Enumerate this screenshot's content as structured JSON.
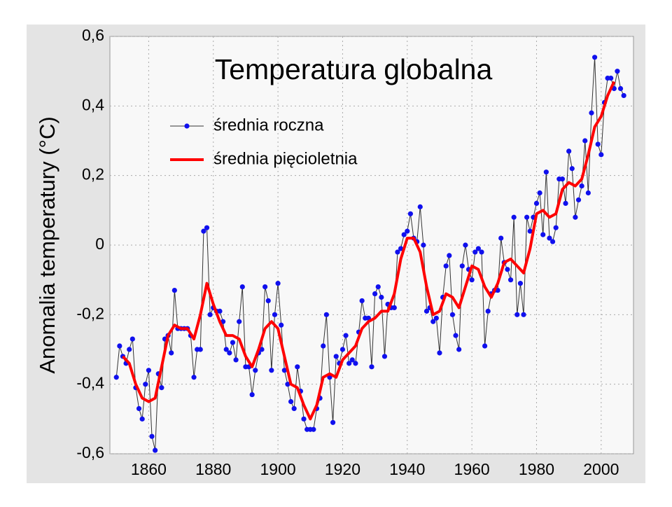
{
  "chart_data": {
    "type": "line",
    "title": "Temperatura globalna",
    "y_label": "Anomalia temperatury (°C)",
    "xlim": [
      1848,
      2010
    ],
    "xticks": [
      1860,
      1880,
      1900,
      1920,
      1940,
      1960,
      1980,
      2000
    ],
    "ylim": [
      -0.6,
      0.6
    ],
    "yticks": [
      {
        "value": -0.6,
        "label": "-0,6"
      },
      {
        "value": -0.4,
        "label": "-0,4"
      },
      {
        "value": -0.2,
        "label": "-0,2"
      },
      0,
      {
        "value": 0.2,
        "label": "0,2"
      },
      {
        "value": 0.4,
        "label": "0,4"
      },
      {
        "value": 0.6,
        "label": "0,6"
      }
    ],
    "grid": true,
    "legend": "upper left",
    "series": [
      {
        "name": "średnia roczna",
        "color": "#333333",
        "marker_color": "#1010ee",
        "markers": true,
        "width": 1,
        "x": [
          1850,
          1851,
          1852,
          1853,
          1854,
          1855,
          1856,
          1857,
          1858,
          1859,
          1860,
          1861,
          1862,
          1863,
          1864,
          1865,
          1866,
          1867,
          1868,
          1869,
          1870,
          1871,
          1872,
          1873,
          1874,
          1875,
          1876,
          1877,
          1878,
          1879,
          1880,
          1881,
          1882,
          1883,
          1884,
          1885,
          1886,
          1887,
          1888,
          1889,
          1890,
          1891,
          1892,
          1893,
          1894,
          1895,
          1896,
          1897,
          1898,
          1899,
          1900,
          1901,
          1902,
          1903,
          1904,
          1905,
          1906,
          1907,
          1908,
          1909,
          1910,
          1911,
          1912,
          1913,
          1914,
          1915,
          1916,
          1917,
          1918,
          1919,
          1920,
          1921,
          1922,
          1923,
          1924,
          1925,
          1926,
          1927,
          1928,
          1929,
          1930,
          1931,
          1932,
          1933,
          1934,
          1935,
          1936,
          1937,
          1938,
          1939,
          1940,
          1941,
          1942,
          1943,
          1944,
          1945,
          1946,
          1947,
          1948,
          1949,
          1950,
          1951,
          1952,
          1953,
          1954,
          1955,
          1956,
          1957,
          1958,
          1959,
          1960,
          1961,
          1962,
          1963,
          1964,
          1965,
          1966,
          1967,
          1968,
          1969,
          1970,
          1971,
          1972,
          1973,
          1974,
          1975,
          1976,
          1977,
          1978,
          1979,
          1980,
          1981,
          1982,
          1983,
          1984,
          1985,
          1986,
          1987,
          1988,
          1989,
          1990,
          1991,
          1992,
          1993,
          1994,
          1995,
          1996,
          1997,
          1998,
          1999,
          2000,
          2001,
          2002,
          2003,
          2004,
          2005,
          2006,
          2007
        ],
        "values": [
          -0.38,
          -0.29,
          -0.32,
          -0.34,
          -0.3,
          -0.27,
          -0.41,
          -0.47,
          -0.5,
          -0.4,
          -0.36,
          -0.55,
          -0.59,
          -0.37,
          -0.41,
          -0.27,
          -0.26,
          -0.31,
          -0.13,
          -0.24,
          -0.24,
          -0.24,
          -0.24,
          -0.26,
          -0.38,
          -0.3,
          -0.3,
          0.04,
          0.05,
          -0.2,
          -0.18,
          -0.19,
          -0.19,
          -0.22,
          -0.3,
          -0.31,
          -0.28,
          -0.33,
          -0.22,
          -0.12,
          -0.35,
          -0.35,
          -0.43,
          -0.36,
          -0.31,
          -0.3,
          -0.12,
          -0.16,
          -0.36,
          -0.2,
          -0.11,
          -0.23,
          -0.36,
          -0.4,
          -0.45,
          -0.47,
          -0.35,
          -0.42,
          -0.5,
          -0.53,
          -0.53,
          -0.53,
          -0.47,
          -0.44,
          -0.29,
          -0.2,
          -0.38,
          -0.51,
          -0.32,
          -0.34,
          -0.3,
          -0.26,
          -0.34,
          -0.33,
          -0.34,
          -0.25,
          -0.16,
          -0.21,
          -0.21,
          -0.35,
          -0.14,
          -0.12,
          -0.15,
          -0.32,
          -0.17,
          -0.18,
          -0.18,
          -0.02,
          -0.01,
          0.03,
          0.04,
          0.09,
          0.02,
          0.01,
          0.11,
          0.0,
          -0.19,
          -0.18,
          -0.22,
          -0.21,
          -0.31,
          -0.15,
          -0.06,
          -0.03,
          -0.2,
          -0.26,
          -0.3,
          -0.06,
          0.0,
          -0.07,
          -0.1,
          -0.02,
          -0.01,
          -0.02,
          -0.29,
          -0.19,
          -0.14,
          -0.13,
          -0.13,
          0.02,
          -0.05,
          -0.07,
          -0.1,
          0.08,
          -0.2,
          -0.11,
          -0.2,
          0.08,
          0.04,
          0.08,
          0.12,
          0.15,
          0.03,
          0.21,
          0.02,
          0.01,
          0.05,
          0.19,
          0.19,
          0.12,
          0.27,
          0.22,
          0.08,
          0.13,
          0.17,
          0.3,
          0.15,
          0.38,
          0.54,
          0.29,
          0.26,
          0.41,
          0.48,
          0.48,
          0.45,
          0.5,
          0.45,
          0.43
        ]
      },
      {
        "name": "średnia pięcioletnia",
        "color": "#ff0000",
        "markers": false,
        "width": 4,
        "x": [
          1852,
          1854,
          1856,
          1858,
          1860,
          1862,
          1864,
          1866,
          1868,
          1870,
          1872,
          1874,
          1876,
          1878,
          1880,
          1882,
          1884,
          1886,
          1888,
          1890,
          1892,
          1894,
          1896,
          1898,
          1900,
          1902,
          1904,
          1906,
          1908,
          1910,
          1912,
          1914,
          1916,
          1918,
          1920,
          1922,
          1924,
          1926,
          1928,
          1930,
          1932,
          1934,
          1936,
          1938,
          1940,
          1942,
          1944,
          1946,
          1948,
          1950,
          1952,
          1954,
          1956,
          1958,
          1960,
          1962,
          1964,
          1966,
          1968,
          1970,
          1972,
          1974,
          1976,
          1978,
          1980,
          1982,
          1984,
          1986,
          1988,
          1990,
          1992,
          1994,
          1996,
          1998,
          2000,
          2002,
          2004
        ],
        "values": [
          -0.32,
          -0.34,
          -0.4,
          -0.44,
          -0.45,
          -0.44,
          -0.35,
          -0.26,
          -0.23,
          -0.24,
          -0.24,
          -0.27,
          -0.2,
          -0.11,
          -0.17,
          -0.22,
          -0.26,
          -0.26,
          -0.27,
          -0.32,
          -0.35,
          -0.3,
          -0.24,
          -0.22,
          -0.24,
          -0.32,
          -0.4,
          -0.41,
          -0.46,
          -0.5,
          -0.46,
          -0.38,
          -0.37,
          -0.38,
          -0.33,
          -0.31,
          -0.29,
          -0.24,
          -0.22,
          -0.21,
          -0.19,
          -0.19,
          -0.14,
          -0.04,
          0.02,
          0.02,
          -0.02,
          -0.12,
          -0.2,
          -0.19,
          -0.14,
          -0.15,
          -0.18,
          -0.12,
          -0.06,
          -0.07,
          -0.12,
          -0.15,
          -0.11,
          -0.05,
          -0.04,
          -0.06,
          -0.08,
          -0.01,
          0.09,
          0.1,
          0.08,
          0.09,
          0.16,
          0.18,
          0.17,
          0.19,
          0.26,
          0.34,
          0.37,
          0.43,
          0.47
        ]
      }
    ]
  }
}
